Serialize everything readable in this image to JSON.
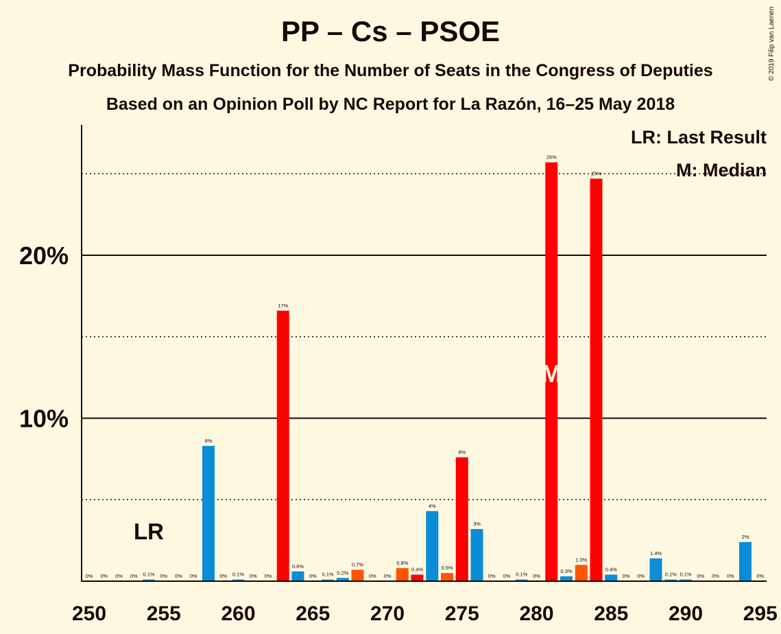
{
  "title": "PP – Cs – PSOE",
  "subtitle": "Probability Mass Function for the Number of Seats in the Congress of Deputies",
  "subtitle2": "Based on an Opinion Poll by NC Report for La Razón, 16–25 May 2018",
  "copyright": "© 2019 Filip van Laenen",
  "legend": {
    "last_result": "LR: Last Result",
    "median": "M: Median"
  },
  "markers": {
    "last_result_label": "LR",
    "last_result_seat": 254,
    "median_label": "M",
    "median_seat": 281
  },
  "colors": {
    "background": "#FFF8E1",
    "text": "#1A0606",
    "blue": "#0A8DD6",
    "red": "#FF0000",
    "orange": "#FF5500"
  },
  "chart_data": {
    "type": "bar",
    "title": "PP – Cs – PSOE",
    "xlabel": "",
    "ylabel": "",
    "xlim": [
      250,
      295
    ],
    "ylim": [
      0,
      28
    ],
    "y_ticks": [
      10,
      20
    ],
    "y_tick_labels": [
      "10%",
      "20%"
    ],
    "y_dotted_gridlines": [
      5,
      15,
      25
    ],
    "x_ticks": [
      250,
      255,
      260,
      265,
      270,
      275,
      280,
      285,
      290,
      295
    ],
    "x_tick_labels": [
      "250",
      "255",
      "260",
      "265",
      "270",
      "275",
      "280",
      "285",
      "290",
      "295"
    ],
    "bars": [
      {
        "seat": 250,
        "value": 0,
        "label": "0%",
        "color": "blue"
      },
      {
        "seat": 251,
        "value": 0,
        "label": "0%",
        "color": "blue"
      },
      {
        "seat": 252,
        "value": 0,
        "label": "0%",
        "color": "blue"
      },
      {
        "seat": 253,
        "value": 0,
        "label": "0%",
        "color": "blue"
      },
      {
        "seat": 254,
        "value": 0.1,
        "label": "0.1%",
        "color": "blue"
      },
      {
        "seat": 255,
        "value": 0,
        "label": "0%",
        "color": "blue"
      },
      {
        "seat": 256,
        "value": 0,
        "label": "0%",
        "color": "blue"
      },
      {
        "seat": 257,
        "value": 0,
        "label": "0%",
        "color": "blue"
      },
      {
        "seat": 258,
        "value": 8.3,
        "label": "8%",
        "color": "blue"
      },
      {
        "seat": 259,
        "value": 0,
        "label": "0%",
        "color": "blue"
      },
      {
        "seat": 260,
        "value": 0.1,
        "label": "0.1%",
        "color": "blue"
      },
      {
        "seat": 261,
        "value": 0,
        "label": "0%",
        "color": "blue"
      },
      {
        "seat": 262,
        "value": 0,
        "label": "0%",
        "color": "blue"
      },
      {
        "seat": 263,
        "value": 16.6,
        "label": "17%",
        "color": "red"
      },
      {
        "seat": 264,
        "value": 0.6,
        "label": "0.6%",
        "color": "blue"
      },
      {
        "seat": 265,
        "value": 0,
        "label": "0%",
        "color": "blue"
      },
      {
        "seat": 266,
        "value": 0.1,
        "label": "0.1%",
        "color": "blue"
      },
      {
        "seat": 267,
        "value": 0.2,
        "label": "0.2%",
        "color": "blue"
      },
      {
        "seat": 268,
        "value": 0.7,
        "label": "0.7%",
        "color": "orange"
      },
      {
        "seat": 269,
        "value": 0,
        "label": "0%",
        "color": "blue"
      },
      {
        "seat": 270,
        "value": 0,
        "label": "0%",
        "color": "blue"
      },
      {
        "seat": 271,
        "value": 0.8,
        "label": "0.8%",
        "color": "orange"
      },
      {
        "seat": 272,
        "value": 0.4,
        "label": "0.4%",
        "color": "red"
      },
      {
        "seat": 273,
        "value": 4.3,
        "label": "4%",
        "color": "blue"
      },
      {
        "seat": 274,
        "value": 0.5,
        "label": "0.5%",
        "color": "orange"
      },
      {
        "seat": 275,
        "value": 7.6,
        "label": "8%",
        "color": "red"
      },
      {
        "seat": 276,
        "value": 3.2,
        "label": "3%",
        "color": "blue"
      },
      {
        "seat": 277,
        "value": 0,
        "label": "0%",
        "color": "blue"
      },
      {
        "seat": 278,
        "value": 0,
        "label": "0%",
        "color": "blue"
      },
      {
        "seat": 279,
        "value": 0.1,
        "label": "0.1%",
        "color": "blue"
      },
      {
        "seat": 280,
        "value": 0,
        "label": "0%",
        "color": "blue"
      },
      {
        "seat": 281,
        "value": 25.7,
        "label": "26%",
        "color": "red"
      },
      {
        "seat": 282,
        "value": 0.3,
        "label": "0.3%",
        "color": "blue"
      },
      {
        "seat": 283,
        "value": 1.0,
        "label": "1.0%",
        "color": "orange"
      },
      {
        "seat": 284,
        "value": 24.7,
        "label": "25%",
        "color": "red"
      },
      {
        "seat": 285,
        "value": 0.4,
        "label": "0.4%",
        "color": "blue"
      },
      {
        "seat": 286,
        "value": 0,
        "label": "0%",
        "color": "blue"
      },
      {
        "seat": 287,
        "value": 0,
        "label": "0%",
        "color": "blue"
      },
      {
        "seat": 288,
        "value": 1.4,
        "label": "1.4%",
        "color": "blue"
      },
      {
        "seat": 289,
        "value": 0.1,
        "label": "0.1%",
        "color": "blue"
      },
      {
        "seat": 290,
        "value": 0.1,
        "label": "0.1%",
        "color": "blue"
      },
      {
        "seat": 291,
        "value": 0,
        "label": "0%",
        "color": "blue"
      },
      {
        "seat": 292,
        "value": 0,
        "label": "0%",
        "color": "blue"
      },
      {
        "seat": 293,
        "value": 0,
        "label": "0%",
        "color": "blue"
      },
      {
        "seat": 294,
        "value": 2.4,
        "label": "2%",
        "color": "blue"
      },
      {
        "seat": 295,
        "value": 0,
        "label": "0%",
        "color": "blue"
      }
    ]
  }
}
